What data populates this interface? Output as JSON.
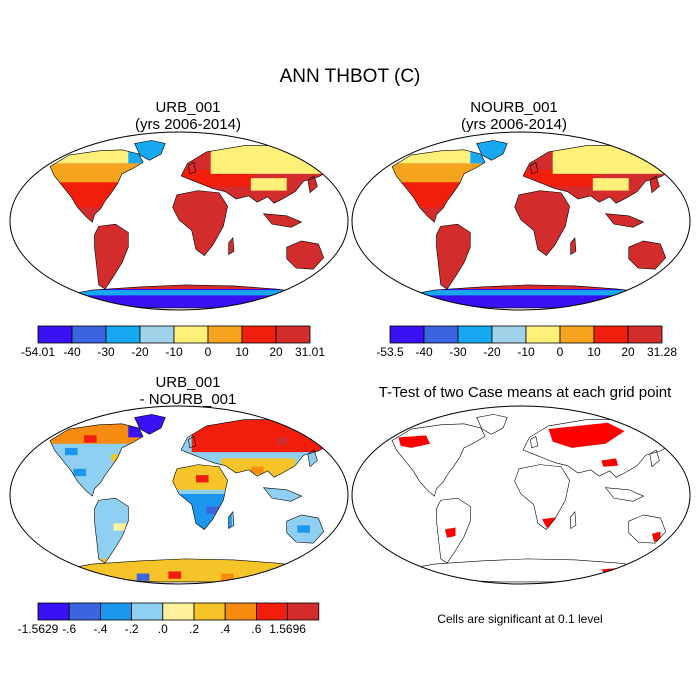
{
  "figure": {
    "title": "ANN THBOT (C)",
    "footnote": "Cells are significant at 0.1 level"
  },
  "panels": [
    {
      "id": "urb",
      "title_line1": "URB_001",
      "title_line2": "(yrs 2006-2014)"
    },
    {
      "id": "nourb",
      "title_line1": "NOURB_001",
      "title_line2": "(yrs 2006-2014)"
    },
    {
      "id": "diff",
      "title_line1": "URB_001",
      "title_line2": "- NOURB_001"
    },
    {
      "id": "ttest",
      "title_line1": "T-Test of two Case means at each grid point"
    }
  ],
  "colors": {
    "abs_scale": [
      "#3a10f5",
      "#3a64e0",
      "#16a8f0",
      "#a0d2ea",
      "#fff07a",
      "#f5a41e",
      "#f21e0c",
      "#d22c2c"
    ],
    "diff_scale": [
      "#3a10f5",
      "#3a64e0",
      "#1d96f0",
      "#8fd0f2",
      "#fff09e",
      "#f5c428",
      "#f58c10",
      "#f21e0c",
      "#d22c2c"
    ],
    "significant": "#ff0000",
    "land_outline": "#000000"
  },
  "chart_data": [
    {
      "type": "heatmap",
      "panel": "urb",
      "title": "URB_001 (yrs 2006-2014)",
      "variable": "ANN THBOT (C)",
      "colorbar": {
        "min_label": "-54.01",
        "ticks": [
          "-40",
          "-30",
          "-20",
          "-10",
          "0",
          "10",
          "20"
        ],
        "max_label": "31.01"
      },
      "regions": [
        {
          "name": "tropics-subtropics",
          "value": 25
        },
        {
          "name": "south-america",
          "value": 25
        },
        {
          "name": "africa",
          "value": 25
        },
        {
          "name": "australia",
          "value": 25
        },
        {
          "name": "usa",
          "value": 15
        },
        {
          "name": "europe",
          "value": 10
        },
        {
          "name": "canada-central",
          "value": 0
        },
        {
          "name": "canada-north",
          "value": -10
        },
        {
          "name": "siberia",
          "value": -10
        },
        {
          "name": "himalaya",
          "value": -5
        },
        {
          "name": "greenland",
          "value": -25
        },
        {
          "name": "antarctica",
          "value": -45
        }
      ]
    },
    {
      "type": "heatmap",
      "panel": "nourb",
      "title": "NOURB_001 (yrs 2006-2014)",
      "variable": "ANN THBOT (C)",
      "colorbar": {
        "min_label": "-53.5",
        "ticks": [
          "-40",
          "-30",
          "-20",
          "-10",
          "0",
          "10",
          "20"
        ],
        "max_label": "31.28"
      },
      "regions": [
        {
          "name": "tropics-subtropics",
          "value": 25
        },
        {
          "name": "south-america",
          "value": 25
        },
        {
          "name": "africa",
          "value": 25
        },
        {
          "name": "australia",
          "value": 25
        },
        {
          "name": "usa",
          "value": 15
        },
        {
          "name": "europe",
          "value": 10
        },
        {
          "name": "canada-central",
          "value": 0
        },
        {
          "name": "canada-north",
          "value": -10
        },
        {
          "name": "siberia",
          "value": -10
        },
        {
          "name": "himalaya",
          "value": -5
        },
        {
          "name": "greenland",
          "value": -25
        },
        {
          "name": "antarctica",
          "value": -45
        }
      ]
    },
    {
      "type": "heatmap",
      "panel": "diff",
      "title": "URB_001 - NOURB_001",
      "colorbar": {
        "min_label": "-1.5629",
        "ticks": [
          "-.6",
          "-.4",
          "-.2",
          ".0",
          ".2",
          ".4",
          ".6"
        ],
        "max_label": "1.5696"
      },
      "regions": [
        {
          "name": "russia",
          "value": 0.8
        },
        {
          "name": "canada-east",
          "value": 0.5
        },
        {
          "name": "greenland",
          "value": -0.7
        },
        {
          "name": "usa",
          "value": -0.1
        },
        {
          "name": "sahara",
          "value": 0.3
        },
        {
          "name": "arabia-india",
          "value": 0.2
        },
        {
          "name": "central-africa",
          "value": -0.3
        },
        {
          "name": "amazon",
          "value": -0.2
        },
        {
          "name": "australia",
          "value": -0.1
        },
        {
          "name": "antarctica",
          "value": 0.2
        }
      ]
    },
    {
      "type": "heatmap",
      "panel": "ttest",
      "title": "T-Test of two Case means at each grid point",
      "significance_level": 0.1,
      "significant_regions": [
        "alaska-canada",
        "northern-russia",
        "central-asia",
        "southern-africa",
        "south-america-south",
        "australia-southeast",
        "antarctica-coast"
      ]
    }
  ]
}
